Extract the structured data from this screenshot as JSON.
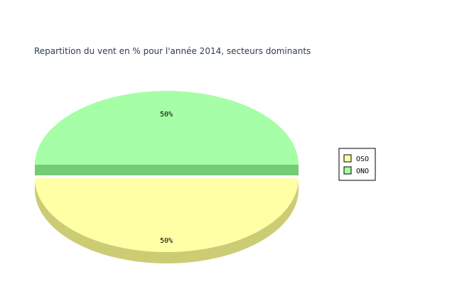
{
  "chart_data": {
    "type": "pie",
    "title": "Repartition du vent en % pour l'année 2014, secteurs dominants",
    "categories": [
      "OSO",
      "ONO"
    ],
    "values": [
      50,
      50
    ],
    "labels": [
      "50%",
      "50%"
    ],
    "three_d": true,
    "exploded": true,
    "legend": "right",
    "colors": {
      "OSO": {
        "top": "#ffffa6",
        "side": "#cccc74"
      },
      "ONO": {
        "top": "#a6ffa6",
        "side": "#74cc74"
      }
    }
  }
}
